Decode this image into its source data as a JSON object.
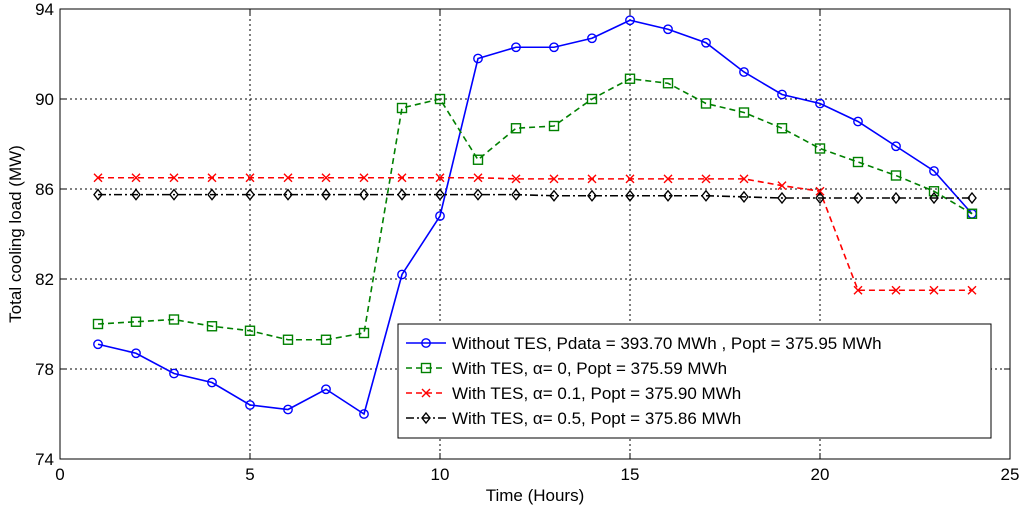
{
  "chart_data": {
    "type": "line",
    "xlabel": "Time (Hours)",
    "ylabel": "Total cooling load (MW)",
    "xlim": [
      0,
      25
    ],
    "ylim": [
      74,
      94
    ],
    "xticks": [
      0,
      5,
      10,
      15,
      20,
      25
    ],
    "yticks": [
      74,
      78,
      82,
      86,
      90,
      94
    ],
    "grid": true,
    "legend_position": "bottom-right",
    "series": [
      {
        "name": "Without TES, Pdata = 393.70 MWh , Popt = 375.95 MWh",
        "color": "#0000ff",
        "marker": "circle",
        "dash": "solid",
        "x": [
          1,
          2,
          3,
          4,
          5,
          6,
          7,
          8,
          9,
          10,
          11,
          12,
          13,
          14,
          15,
          16,
          17,
          18,
          19,
          20,
          21,
          22,
          23,
          24
        ],
        "values": [
          79.1,
          78.7,
          77.8,
          77.4,
          76.4,
          76.2,
          77.1,
          76.0,
          82.2,
          84.8,
          91.8,
          92.3,
          92.3,
          92.7,
          93.5,
          93.1,
          92.5,
          91.2,
          90.2,
          89.8,
          89.0,
          87.9,
          86.8,
          84.9
        ]
      },
      {
        "name": "With TES, α= 0, Popt = 375.59 MWh",
        "color": "#008000",
        "marker": "square",
        "dash": "dashed",
        "x": [
          1,
          2,
          3,
          4,
          5,
          6,
          7,
          8,
          9,
          10,
          11,
          12,
          13,
          14,
          15,
          16,
          17,
          18,
          19,
          20,
          21,
          22,
          23,
          24
        ],
        "values": [
          80.0,
          80.1,
          80.2,
          79.9,
          79.7,
          79.3,
          79.3,
          79.6,
          89.6,
          90.0,
          87.3,
          88.7,
          88.8,
          90.0,
          90.9,
          90.7,
          89.8,
          89.4,
          88.7,
          87.8,
          87.2,
          86.6,
          85.9,
          84.9
        ]
      },
      {
        "name": "With TES, α= 0.1, Popt = 375.90 MWh",
        "color": "#ff0000",
        "marker": "x",
        "dash": "dashed",
        "x": [
          1,
          2,
          3,
          4,
          5,
          6,
          7,
          8,
          9,
          10,
          11,
          12,
          13,
          14,
          15,
          16,
          17,
          18,
          19,
          20,
          21,
          22,
          23,
          24
        ],
        "values": [
          86.5,
          86.5,
          86.5,
          86.5,
          86.5,
          86.5,
          86.5,
          86.5,
          86.5,
          86.5,
          86.5,
          86.45,
          86.45,
          86.45,
          86.45,
          86.45,
          86.45,
          86.45,
          86.15,
          85.9,
          81.5,
          81.5,
          81.5,
          81.5
        ]
      },
      {
        "name": "With TES, α= 0.5, Popt = 375.86 MWh",
        "color": "#000000",
        "marker": "diamond",
        "dash": "dashdot",
        "x": [
          1,
          2,
          3,
          4,
          5,
          6,
          7,
          8,
          9,
          10,
          11,
          12,
          13,
          14,
          15,
          16,
          17,
          18,
          19,
          20,
          21,
          22,
          23,
          24
        ],
        "values": [
          85.75,
          85.75,
          85.75,
          85.75,
          85.75,
          85.75,
          85.75,
          85.75,
          85.75,
          85.75,
          85.75,
          85.75,
          85.7,
          85.7,
          85.7,
          85.7,
          85.7,
          85.65,
          85.6,
          85.6,
          85.6,
          85.6,
          85.6,
          85.6
        ]
      }
    ]
  }
}
